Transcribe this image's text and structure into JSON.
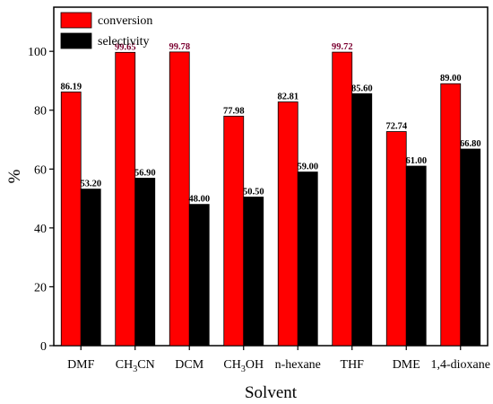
{
  "chart_data": {
    "type": "bar",
    "xlabel": "Solvent",
    "ylabel": "%",
    "ylim": [
      0,
      115
    ],
    "yticks": [
      0,
      20,
      40,
      60,
      80,
      100
    ],
    "ytick_labels": [
      "0",
      "20",
      "40",
      "60",
      "80",
      "100"
    ],
    "grid": false,
    "legend_position": "top-left",
    "categories": [
      {
        "pre": "DMF",
        "sub": "",
        "post": ""
      },
      {
        "pre": "CH",
        "sub": "3",
        "post": "CN"
      },
      {
        "pre": "DCM",
        "sub": "",
        "post": ""
      },
      {
        "pre": "CH",
        "sub": "3",
        "post": "OH"
      },
      {
        "pre": "n-hexane",
        "sub": "",
        "post": ""
      },
      {
        "pre": "THF",
        "sub": "",
        "post": ""
      },
      {
        "pre": "DME",
        "sub": "",
        "post": ""
      },
      {
        "pre": "1,4-dioxane",
        "sub": "",
        "post": ""
      }
    ],
    "series": [
      {
        "name": "conversion",
        "color": "#ff0000",
        "label_color": "#000000",
        "high_label_color": "#7b0030",
        "values": [
          86.19,
          99.65,
          99.78,
          77.98,
          82.81,
          99.72,
          72.74,
          89.0
        ],
        "labels": [
          "86.19",
          "99.65",
          "99.78",
          "77.98",
          "82.81",
          "99.72",
          "72.74",
          "89.00"
        ]
      },
      {
        "name": "selectivity",
        "color": "#000000",
        "label_color": "#000000",
        "values": [
          53.2,
          56.9,
          48.0,
          50.5,
          59.0,
          85.6,
          61.0,
          66.8
        ],
        "labels": [
          "53.20",
          "56.90",
          "48.00",
          "50.50",
          "59.00",
          "85.60",
          "61.00",
          "66.80"
        ]
      }
    ]
  }
}
